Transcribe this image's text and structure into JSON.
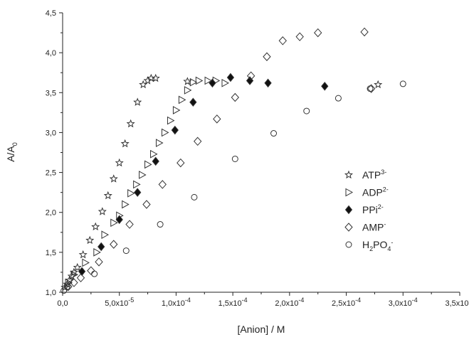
{
  "chart_data": {
    "type": "scatter",
    "xlabel": "[Anion] / M",
    "ylabel": "A/A",
    "ylabel_sub": "0",
    "xlim": [
      0,
      0.00035
    ],
    "ylim": [
      1.0,
      4.5
    ],
    "grid": false,
    "legend_position": "center-right",
    "x_ticks": [
      {
        "value": 0,
        "label": "0,0"
      },
      {
        "value": 5e-05,
        "label": "5,0x10",
        "exp": "-5"
      },
      {
        "value": 0.0001,
        "label": "1,0x10",
        "exp": "-4"
      },
      {
        "value": 0.00015,
        "label": "1,5x10",
        "exp": "-4"
      },
      {
        "value": 0.0002,
        "label": "2,0x10",
        "exp": "-4"
      },
      {
        "value": 0.00025,
        "label": "2,5x10",
        "exp": "-4"
      },
      {
        "value": 0.0003,
        "label": "3,0x10",
        "exp": "-4"
      },
      {
        "value": 0.00035,
        "label": "3,5x10",
        "exp": "-4"
      }
    ],
    "y_ticks": [
      {
        "value": 1.0,
        "label": "1,0"
      },
      {
        "value": 1.5,
        "label": "1,5"
      },
      {
        "value": 2.0,
        "label": "2,0"
      },
      {
        "value": 2.5,
        "label": "2,5"
      },
      {
        "value": 3.0,
        "label": "3,0"
      },
      {
        "value": 3.5,
        "label": "3,5"
      },
      {
        "value": 4.0,
        "label": "4,0"
      },
      {
        "value": 4.5,
        "label": "4,5"
      }
    ],
    "series": [
      {
        "name": "ATP",
        "name_sup": "3-",
        "marker": "star",
        "points": [
          [
            2e-06,
            1.06
          ],
          [
            4e-06,
            1.1
          ],
          [
            6e-06,
            1.15
          ],
          [
            8e-06,
            1.2
          ],
          [
            1e-05,
            1.25
          ],
          [
            1.3e-05,
            1.31
          ],
          [
            1.8e-05,
            1.47
          ],
          [
            2.4e-05,
            1.65
          ],
          [
            2.9e-05,
            1.82
          ],
          [
            3.5e-05,
            2.01
          ],
          [
            4e-05,
            2.21
          ],
          [
            4.5e-05,
            2.42
          ],
          [
            5e-05,
            2.62
          ],
          [
            5.5e-05,
            2.86
          ],
          [
            6e-05,
            3.11
          ],
          [
            6.6e-05,
            3.38
          ],
          [
            7.1e-05,
            3.6
          ],
          [
            7.5e-05,
            3.65
          ],
          [
            7.8e-05,
            3.68
          ],
          [
            8.2e-05,
            3.68
          ],
          [
            0.00011,
            3.64
          ],
          [
            0.000278,
            3.6
          ]
        ]
      },
      {
        "name": "ADP",
        "name_sup": "2-",
        "marker": "triangle-right",
        "points": [
          [
            5e-06,
            1.12
          ],
          [
            1e-05,
            1.22
          ],
          [
            2e-05,
            1.37
          ],
          [
            3e-05,
            1.5
          ],
          [
            3.7e-05,
            1.72
          ],
          [
            4.5e-05,
            1.87
          ],
          [
            5e-05,
            1.96
          ],
          [
            5.5e-05,
            2.1
          ],
          [
            6e-05,
            2.24
          ],
          [
            6.5e-05,
            2.35
          ],
          [
            7e-05,
            2.47
          ],
          [
            7.5e-05,
            2.6
          ],
          [
            8e-05,
            2.73
          ],
          [
            8.5e-05,
            2.87
          ],
          [
            9e-05,
            3.0
          ],
          [
            9.5e-05,
            3.15
          ],
          [
            0.0001,
            3.28
          ],
          [
            0.000105,
            3.41
          ],
          [
            0.00011,
            3.53
          ],
          [
            0.000115,
            3.63
          ],
          [
            0.00012,
            3.65
          ],
          [
            0.000128,
            3.65
          ],
          [
            0.000135,
            3.65
          ],
          [
            0.000143,
            3.62
          ]
        ]
      },
      {
        "name": "PPi",
        "name_sup": "2-",
        "marker": "diamond-filled",
        "points": [
          [
            1.7e-05,
            1.26
          ],
          [
            3.4e-05,
            1.57
          ],
          [
            5e-05,
            1.91
          ],
          [
            6.6e-05,
            2.25
          ],
          [
            8.2e-05,
            2.64
          ],
          [
            9.9e-05,
            3.03
          ],
          [
            0.000115,
            3.38
          ],
          [
            0.000132,
            3.62
          ],
          [
            0.000148,
            3.69
          ],
          [
            0.000165,
            3.65
          ],
          [
            0.000181,
            3.62
          ],
          [
            0.000231,
            3.58
          ]
        ]
      },
      {
        "name": "AMP",
        "name_sup": "-",
        "marker": "diamond-open",
        "points": [
          [
            5e-06,
            1.07
          ],
          [
            1e-05,
            1.12
          ],
          [
            1.6e-05,
            1.18
          ],
          [
            2.5e-05,
            1.27
          ],
          [
            3.2e-05,
            1.38
          ],
          [
            4.5e-05,
            1.6
          ],
          [
            5.9e-05,
            1.85
          ],
          [
            7.4e-05,
            2.1
          ],
          [
            8.8e-05,
            2.35
          ],
          [
            0.000104,
            2.62
          ],
          [
            0.000119,
            2.89
          ],
          [
            0.000136,
            3.17
          ],
          [
            0.000152,
            3.44
          ],
          [
            0.000166,
            3.71
          ],
          [
            0.00018,
            3.95
          ],
          [
            0.000194,
            4.15
          ],
          [
            0.000209,
            4.2
          ],
          [
            0.000225,
            4.25
          ],
          [
            0.000266,
            4.26
          ],
          [
            0.000272,
            3.55
          ]
        ]
      },
      {
        "name": "H",
        "name_sub": "2",
        "name_mid": "PO",
        "name_sub2": "4",
        "name_sup": "-",
        "marker": "circle-open",
        "points": [
          [
            1e-06,
            1.02
          ],
          [
            4e-06,
            1.07
          ],
          [
            2.8e-05,
            1.23
          ],
          [
            5.6e-05,
            1.52
          ],
          [
            8.6e-05,
            1.85
          ],
          [
            0.000116,
            2.19
          ],
          [
            0.000152,
            2.67
          ],
          [
            0.000186,
            2.99
          ],
          [
            0.000215,
            3.27
          ],
          [
            0.000243,
            3.43
          ],
          [
            0.000271,
            3.55
          ],
          [
            0.0003,
            3.61
          ]
        ]
      }
    ]
  }
}
